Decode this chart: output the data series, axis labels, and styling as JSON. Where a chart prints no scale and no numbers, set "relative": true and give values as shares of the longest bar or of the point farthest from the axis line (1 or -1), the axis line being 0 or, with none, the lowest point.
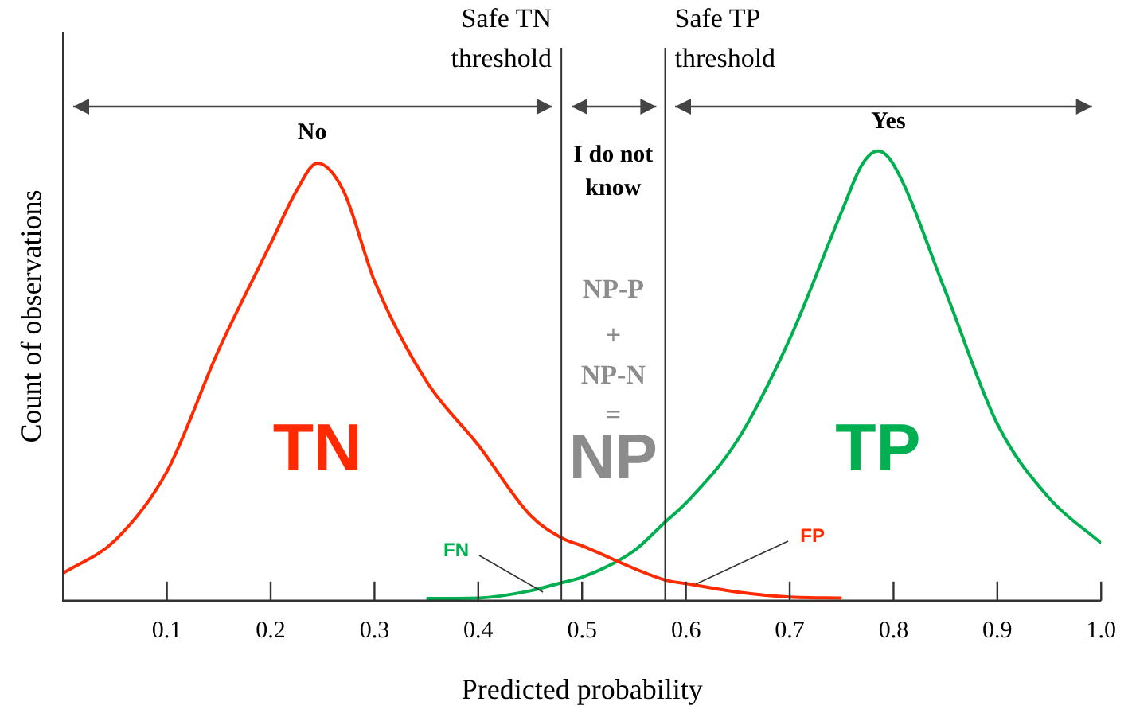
{
  "chart_data": {
    "type": "line",
    "relative": true,
    "xlabel": "Predicted probability",
    "ylabel": "Count of observations",
    "xlim": [
      0,
      1.0
    ],
    "xticks": [
      0.1,
      0.2,
      0.3,
      0.4,
      0.5,
      0.6,
      0.7,
      0.8,
      0.9,
      {
        "value": 1,
        "label": "1.0"
      }
    ],
    "grid": false,
    "legend": false,
    "marker": "none",
    "line_style": "solid",
    "series": [
      {
        "name": "TN",
        "color": "#ff2a00",
        "x": [
          0,
          0.05,
          0.1,
          0.15,
          0.2,
          0.225,
          0.245,
          0.27,
          0.3,
          0.35,
          0.4,
          0.45,
          0.48,
          0.5,
          0.58,
          0.6,
          0.65,
          0.7,
          0.75
        ],
        "values": [
          0.061,
          0.134,
          0.287,
          0.558,
          0.794,
          0.912,
          0.973,
          0.912,
          0.711,
          0.488,
          0.346,
          0.19,
          0.14,
          0.122,
          0.046,
          0.038,
          0.019,
          0.008,
          0.006
        ]
      },
      {
        "name": "TP",
        "color": "#00b050",
        "x": [
          0.35,
          0.4,
          0.45,
          0.48,
          0.5,
          0.55,
          0.58,
          0.6,
          0.65,
          0.7,
          0.75,
          0.77,
          0.785,
          0.8,
          0.85,
          0.9,
          0.95,
          1.0
        ],
        "values": [
          0.005,
          0.006,
          0.022,
          0.04,
          0.052,
          0.111,
          0.175,
          0.217,
          0.358,
          0.582,
          0.865,
          0.971,
          1,
          0.97,
          0.688,
          0.393,
          0.228,
          0.128
        ]
      }
    ],
    "ref_lines": [
      {
        "axis": "x",
        "value": 0.48,
        "label": "Safe TN threshold"
      },
      {
        "axis": "x",
        "value": 0.58,
        "label": "Safe TP threshold"
      }
    ],
    "annotations": [
      "No",
      "Yes",
      "I do not know",
      {
        "text": "FN",
        "x": 0.463,
        "y": 0.018
      },
      {
        "text": "FP",
        "x": 0.61,
        "y": 0.036
      },
      "NP-P",
      "+",
      "NP-N",
      "=",
      "NP"
    ]
  }
}
